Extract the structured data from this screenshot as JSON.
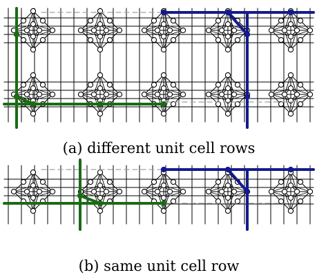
{
  "captions": {
    "a": "(a) different unit cell rows",
    "b": "(b) same unit cell row"
  },
  "colors": {
    "background": "#ffffff",
    "grid_line": "#000000",
    "node_fill": "#ffffff",
    "green_path": "#1a6b14",
    "blue_path": "#141a8c",
    "dashed_guide": "#a0a0a0"
  }
}
